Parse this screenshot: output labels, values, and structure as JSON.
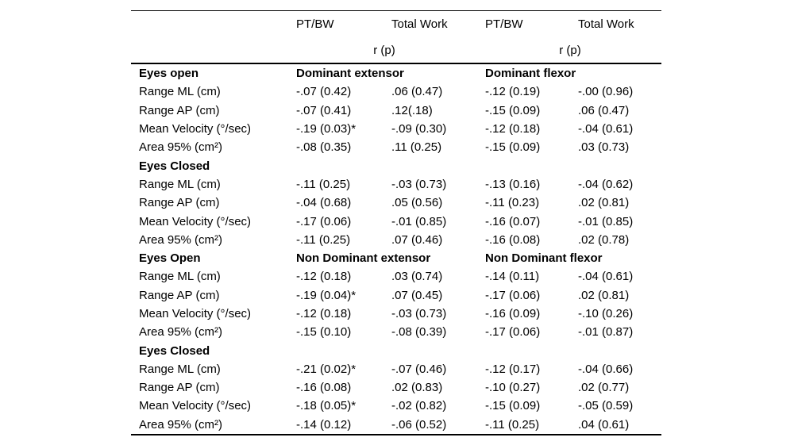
{
  "page": {
    "background": "#ffffff",
    "text_color": "#000000",
    "rule_color": "#000000"
  },
  "table": {
    "columns": [
      "",
      "PT/BW",
      "Total Work",
      "PT/BW",
      "Total Work"
    ],
    "subheader": {
      "left": "r (p)",
      "right": "r (p)"
    },
    "blocks": [
      {
        "section": "Eyes open",
        "group_left": "Dominant extensor",
        "group_right": "Dominant flexor",
        "rows": [
          {
            "label": "Range ML (cm)",
            "values": [
              "-.07 (0.42)",
              ".06 (0.47)",
              "-.12 (0.19)",
              "-.00 (0.96)"
            ]
          },
          {
            "label": "Range AP (cm)",
            "values": [
              "-.07 (0.41)",
              ".12(.18)",
              "-.15 (0.09)",
              ".06 (0.47)"
            ]
          },
          {
            "label": "Mean Velocity (°/sec)",
            "values": [
              "-.19 (0.03)*",
              "-.09 (0.30)",
              "-.12 (0.18)",
              "-.04 (0.61)"
            ]
          },
          {
            "label": "Area 95% (cm²)",
            "values": [
              "-.08 (0.35)",
              ".11 (0.25)",
              "-.15 (0.09)",
              ".03 (0.73)"
            ]
          }
        ]
      },
      {
        "section": "Eyes Closed",
        "group_left": "",
        "group_right": "",
        "rows": [
          {
            "label": "Range ML (cm)",
            "values": [
              "-.11 (0.25)",
              "-.03 (0.73)",
              "-.13 (0.16)",
              "-.04 (0.62)"
            ]
          },
          {
            "label": "Range AP (cm)",
            "values": [
              "-.04 (0.68)",
              ".05 (0.56)",
              "-.11 (0.23)",
              ".02 (0.81)"
            ]
          },
          {
            "label": "Mean Velocity (°/sec)",
            "values": [
              "-.17 (0.06)",
              "-.01 (0.85)",
              "-.16 (0.07)",
              "-.01 (0.85)"
            ]
          },
          {
            "label": "Area 95% (cm²)",
            "values": [
              "-.11 (0.25)",
              ".07 (0.46)",
              "-.16 (0.08)",
              ".02 (0.78)"
            ]
          }
        ]
      },
      {
        "section": "Eyes Open",
        "group_left": "Non Dominant extensor",
        "group_right": "Non Dominant flexor",
        "rows": [
          {
            "label": "Range ML (cm)",
            "values": [
              "-.12 (0.18)",
              ".03 (0.74)",
              "-.14 (0.11)",
              "-.04 (0.61)"
            ]
          },
          {
            "label": "Range AP (cm)",
            "values": [
              "-.19 (0.04)*",
              ".07 (0.45)",
              "-.17 (0.06)",
              ".02 (0.81)"
            ]
          },
          {
            "label": "Mean Velocity (°/sec)",
            "values": [
              "-.12 (0.18)",
              "-.03 (0.73)",
              "-.16 (0.09)",
              "-.10 (0.26)"
            ]
          },
          {
            "label": "Area 95% (cm²)",
            "values": [
              "-.15 (0.10)",
              "-.08 (0.39)",
              "-.17 (0.06)",
              "-.01 (0.87)"
            ]
          }
        ]
      },
      {
        "section": "Eyes Closed",
        "group_left": "",
        "group_right": "",
        "rows": [
          {
            "label": "Range ML (cm)",
            "values": [
              "-.21 (0.02)*",
              "-.07 (0.46)",
              "-.12 (0.17)",
              "-.04 (0.66)"
            ]
          },
          {
            "label": "Range AP (cm)",
            "values": [
              "-.16 (0.08)",
              ".02 (0.83)",
              "-.10 (0.27)",
              ".02 (0.77)"
            ]
          },
          {
            "label": "Mean Velocity (°/sec)",
            "values": [
              "-.18 (0.05)*",
              "-.02 (0.82)",
              "-.15 (0.09)",
              "-.05 (0.59)"
            ]
          },
          {
            "label": "Area 95% (cm²)",
            "values": [
              "-.14 (0.12)",
              "-.06 (0.52)",
              "-.11 (0.25)",
              ".04 (0.61)"
            ]
          }
        ]
      }
    ]
  }
}
